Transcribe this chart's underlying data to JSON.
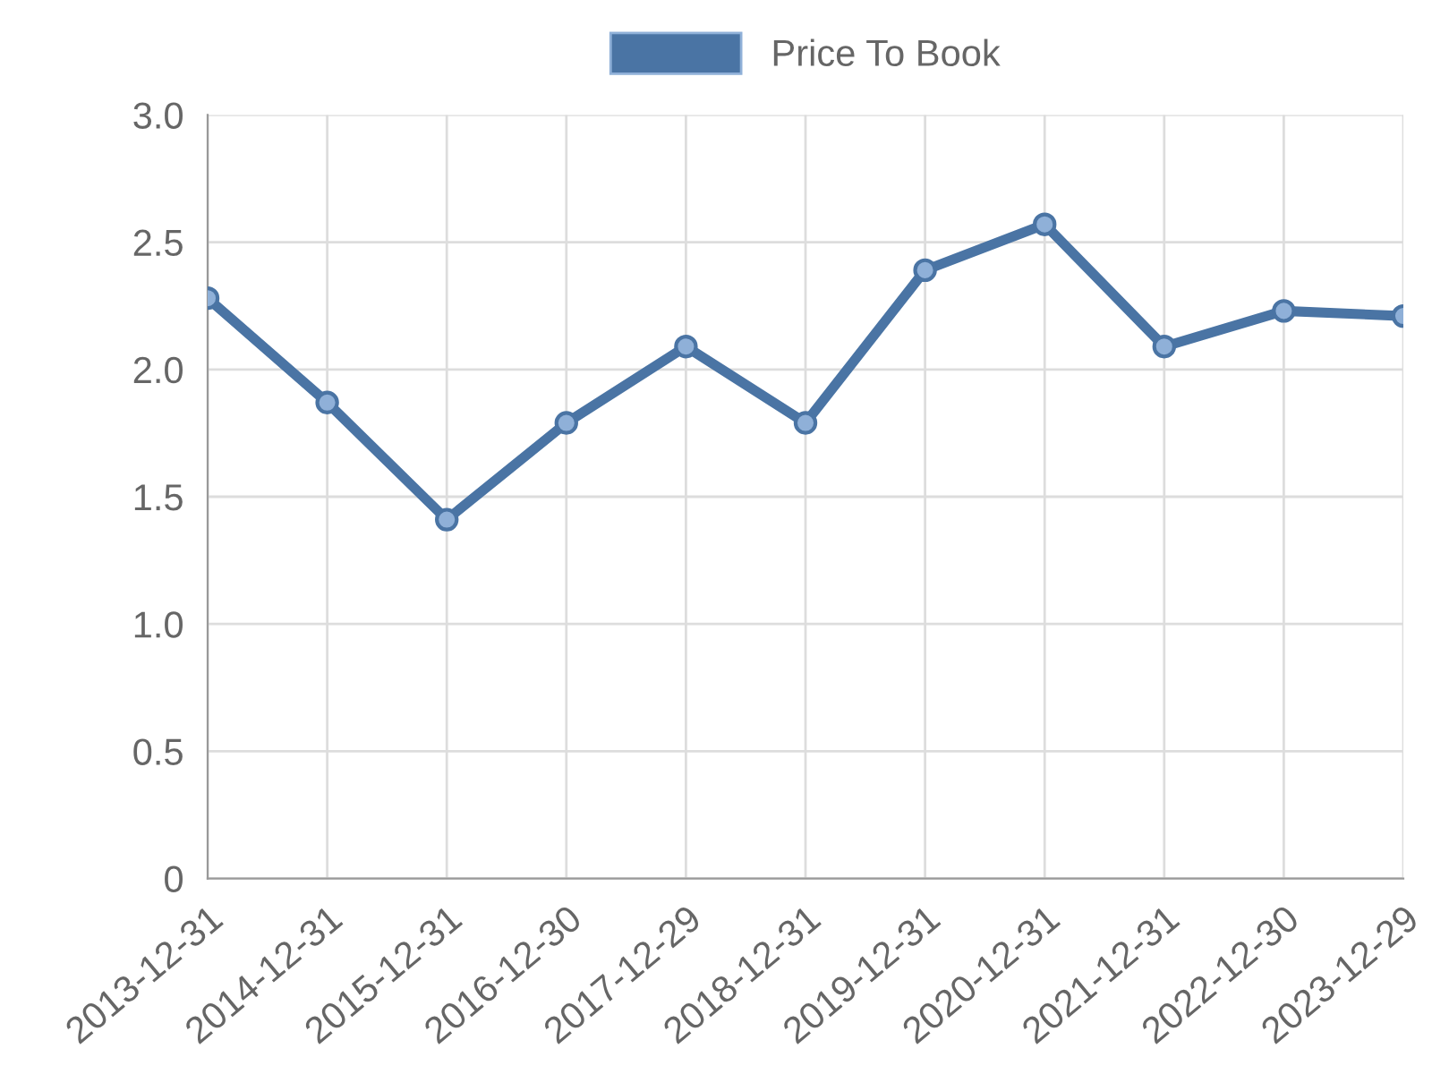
{
  "chart_data": {
    "type": "line",
    "categories": [
      "2013-12-31",
      "2014-12-31",
      "2015-12-31",
      "2016-12-30",
      "2017-12-29",
      "2018-12-31",
      "2019-12-31",
      "2020-12-31",
      "2021-12-31",
      "2022-12-30",
      "2023-12-29"
    ],
    "series": [
      {
        "name": "Price To Book",
        "color": "#4a74a4",
        "values": [
          2.28,
          1.87,
          1.41,
          1.79,
          2.09,
          1.79,
          2.39,
          2.57,
          2.09,
          2.23,
          2.21
        ]
      }
    ],
    "ylim": [
      0,
      3
    ],
    "yticks": [
      0,
      {
        "value": 0.5,
        "label": "0.5"
      },
      {
        "value": 1,
        "label": "1.0"
      },
      {
        "value": 1.5,
        "label": "1.5"
      },
      {
        "value": 2,
        "label": "2.0"
      },
      {
        "value": 2.5,
        "label": "2.5"
      },
      {
        "value": 3,
        "label": "3.0"
      }
    ],
    "grid": true,
    "legend": "top",
    "marker": "circle",
    "line_style": "solid"
  }
}
